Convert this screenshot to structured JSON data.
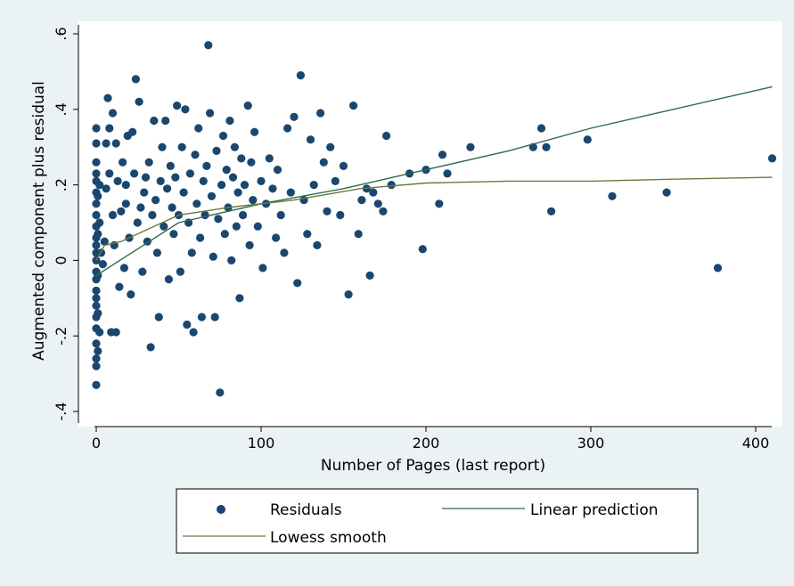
{
  "chart_data": {
    "type": "scatter",
    "title": "",
    "xlabel": "Number of Pages (last report)",
    "ylabel": "Augmented component plus residual",
    "xlim": [
      -5,
      410
    ],
    "ylim": [
      -0.4,
      0.6
    ],
    "xticks": [
      0,
      100,
      200,
      300,
      400
    ],
    "yticks": [
      -0.4,
      -0.2,
      0,
      0.2,
      0.4,
      0.6
    ],
    "xtick_labels": [
      "0",
      "100",
      "200",
      "300",
      "400"
    ],
    "ytick_labels": [
      "-.4",
      "-.2",
      "0",
      ".2",
      ".4",
      ".6"
    ],
    "grid": false,
    "legend_position": "bottom",
    "series": [
      {
        "name": "Residuals",
        "kind": "scatter",
        "color": "#1a476f",
        "points": [
          [
            0,
            -0.33
          ],
          [
            0,
            -0.28
          ],
          [
            0,
            -0.26
          ],
          [
            0,
            -0.22
          ],
          [
            0,
            -0.18
          ],
          [
            0,
            -0.15
          ],
          [
            0,
            -0.12
          ],
          [
            0,
            -0.1
          ],
          [
            0,
            -0.08
          ],
          [
            0,
            -0.05
          ],
          [
            0,
            -0.03
          ],
          [
            0,
            0.0
          ],
          [
            0,
            0.02
          ],
          [
            0,
            0.04
          ],
          [
            0,
            0.06
          ],
          [
            0,
            0.09
          ],
          [
            0,
            0.12
          ],
          [
            0,
            0.15
          ],
          [
            0,
            0.18
          ],
          [
            0,
            0.21
          ],
          [
            0,
            0.23
          ],
          [
            0,
            0.26
          ],
          [
            0,
            0.31
          ],
          [
            0,
            0.35
          ],
          [
            1,
            -0.24
          ],
          [
            1,
            -0.14
          ],
          [
            1,
            -0.04
          ],
          [
            1,
            0.07
          ],
          [
            1,
            0.17
          ],
          [
            2,
            -0.19
          ],
          [
            2,
            0.1
          ],
          [
            2,
            0.2
          ],
          [
            3,
            0.02
          ],
          [
            4,
            -0.01
          ],
          [
            5,
            0.05
          ],
          [
            6,
            0.31
          ],
          [
            6,
            0.19
          ],
          [
            7,
            0.43
          ],
          [
            8,
            0.35
          ],
          [
            8,
            0.23
          ],
          [
            9,
            -0.19
          ],
          [
            10,
            0.39
          ],
          [
            10,
            0.12
          ],
          [
            11,
            0.04
          ],
          [
            12,
            -0.19
          ],
          [
            12,
            0.31
          ],
          [
            13,
            0.21
          ],
          [
            14,
            -0.07
          ],
          [
            15,
            0.13
          ],
          [
            16,
            0.26
          ],
          [
            17,
            -0.02
          ],
          [
            18,
            0.15
          ],
          [
            18,
            0.2
          ],
          [
            19,
            0.33
          ],
          [
            20,
            0.06
          ],
          [
            21,
            -0.09
          ],
          [
            22,
            0.34
          ],
          [
            23,
            0.23
          ],
          [
            24,
            0.48
          ],
          [
            25,
            0.1
          ],
          [
            26,
            0.42
          ],
          [
            27,
            0.14
          ],
          [
            28,
            -0.03
          ],
          [
            29,
            0.18
          ],
          [
            30,
            0.22
          ],
          [
            31,
            0.05
          ],
          [
            32,
            0.26
          ],
          [
            33,
            -0.23
          ],
          [
            34,
            0.12
          ],
          [
            35,
            0.37
          ],
          [
            36,
            0.16
          ],
          [
            37,
            0.02
          ],
          [
            38,
            -0.15
          ],
          [
            39,
            0.21
          ],
          [
            40,
            0.3
          ],
          [
            41,
            0.09
          ],
          [
            42,
            0.37
          ],
          [
            43,
            0.19
          ],
          [
            44,
            -0.05
          ],
          [
            45,
            0.25
          ],
          [
            46,
            0.14
          ],
          [
            47,
            0.07
          ],
          [
            48,
            0.22
          ],
          [
            49,
            0.41
          ],
          [
            50,
            0.12
          ],
          [
            51,
            -0.03
          ],
          [
            52,
            0.3
          ],
          [
            53,
            0.18
          ],
          [
            54,
            0.4
          ],
          [
            55,
            -0.17
          ],
          [
            56,
            0.1
          ],
          [
            57,
            0.23
          ],
          [
            58,
            0.02
          ],
          [
            59,
            -0.19
          ],
          [
            60,
            0.28
          ],
          [
            61,
            0.15
          ],
          [
            62,
            0.35
          ],
          [
            63,
            0.06
          ],
          [
            64,
            -0.15
          ],
          [
            65,
            0.21
          ],
          [
            66,
            0.12
          ],
          [
            67,
            0.25
          ],
          [
            68,
            0.57
          ],
          [
            69,
            0.39
          ],
          [
            70,
            0.17
          ],
          [
            71,
            0.01
          ],
          [
            72,
            -0.15
          ],
          [
            73,
            0.29
          ],
          [
            74,
            0.11
          ],
          [
            75,
            -0.35
          ],
          [
            76,
            0.2
          ],
          [
            77,
            0.33
          ],
          [
            78,
            0.07
          ],
          [
            79,
            0.24
          ],
          [
            80,
            0.14
          ],
          [
            81,
            0.37
          ],
          [
            82,
            0.0
          ],
          [
            83,
            0.22
          ],
          [
            84,
            0.3
          ],
          [
            85,
            0.09
          ],
          [
            86,
            0.18
          ],
          [
            87,
            -0.1
          ],
          [
            88,
            0.27
          ],
          [
            89,
            0.12
          ],
          [
            90,
            0.2
          ],
          [
            92,
            0.41
          ],
          [
            93,
            0.04
          ],
          [
            94,
            0.26
          ],
          [
            95,
            0.16
          ],
          [
            96,
            0.34
          ],
          [
            98,
            0.09
          ],
          [
            100,
            0.21
          ],
          [
            101,
            -0.02
          ],
          [
            103,
            0.15
          ],
          [
            105,
            0.27
          ],
          [
            107,
            0.19
          ],
          [
            109,
            0.06
          ],
          [
            110,
            0.24
          ],
          [
            112,
            0.12
          ],
          [
            114,
            0.02
          ],
          [
            116,
            0.35
          ],
          [
            118,
            0.18
          ],
          [
            120,
            0.38
          ],
          [
            122,
            -0.06
          ],
          [
            124,
            0.49
          ],
          [
            126,
            0.16
          ],
          [
            128,
            0.07
          ],
          [
            130,
            0.32
          ],
          [
            132,
            0.2
          ],
          [
            134,
            0.04
          ],
          [
            136,
            0.39
          ],
          [
            138,
            0.26
          ],
          [
            140,
            0.13
          ],
          [
            142,
            0.3
          ],
          [
            145,
            0.21
          ],
          [
            148,
            0.12
          ],
          [
            150,
            0.25
          ],
          [
            153,
            -0.09
          ],
          [
            156,
            0.41
          ],
          [
            159,
            0.07
          ],
          [
            161,
            0.16
          ],
          [
            164,
            0.19
          ],
          [
            166,
            -0.04
          ],
          [
            168,
            0.18
          ],
          [
            171,
            0.15
          ],
          [
            174,
            0.13
          ],
          [
            176,
            0.33
          ],
          [
            179,
            0.2
          ],
          [
            190,
            0.23
          ],
          [
            198,
            0.03
          ],
          [
            200,
            0.24
          ],
          [
            208,
            0.15
          ],
          [
            210,
            0.28
          ],
          [
            213,
            0.23
          ],
          [
            227,
            0.3
          ],
          [
            265,
            0.3
          ],
          [
            270,
            0.35
          ],
          [
            273,
            0.3
          ],
          [
            276,
            0.13
          ],
          [
            298,
            0.32
          ],
          [
            313,
            0.17
          ],
          [
            346,
            0.18
          ],
          [
            377,
            -0.02
          ],
          [
            410,
            0.27
          ]
        ]
      },
      {
        "name": "Linear prediction",
        "kind": "line",
        "color": "#2d6a4f",
        "points": [
          [
            0,
            -0.04
          ],
          [
            50,
            0.1
          ],
          [
            100,
            0.15
          ],
          [
            150,
            0.19
          ],
          [
            200,
            0.24
          ],
          [
            250,
            0.29
          ],
          [
            300,
            0.35
          ],
          [
            350,
            0.4
          ],
          [
            410,
            0.46
          ]
        ]
      },
      {
        "name": "Lowess smooth",
        "kind": "line",
        "color": "#6b7a3a",
        "points": [
          [
            0,
            0.0
          ],
          [
            5,
            0.04
          ],
          [
            15,
            0.05
          ],
          [
            30,
            0.08
          ],
          [
            50,
            0.12
          ],
          [
            80,
            0.14
          ],
          [
            120,
            0.16
          ],
          [
            160,
            0.19
          ],
          [
            200,
            0.205
          ],
          [
            250,
            0.21
          ],
          [
            300,
            0.21
          ],
          [
            350,
            0.215
          ],
          [
            410,
            0.22
          ]
        ]
      }
    ]
  }
}
